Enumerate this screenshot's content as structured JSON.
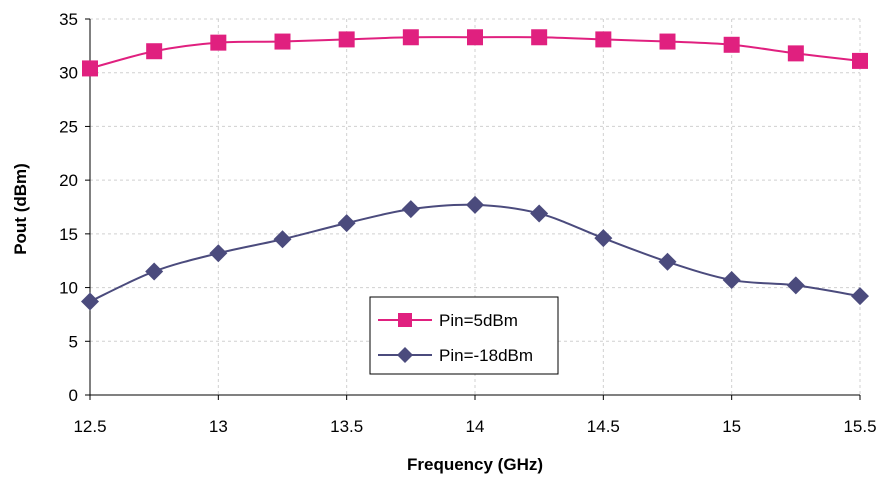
{
  "chart_data": {
    "type": "line",
    "xlabel": "Frequency (GHz)",
    "ylabel": "Pout (dBm)",
    "xlim": [
      12.5,
      15.5
    ],
    "ylim": [
      0,
      35
    ],
    "x_ticks": [
      "12.5",
      "13",
      "13.5",
      "14",
      "14.5",
      "15",
      "15.5"
    ],
    "y_ticks": [
      "0",
      "5",
      "10",
      "15",
      "20",
      "25",
      "30",
      "35"
    ],
    "grid": "dashed",
    "legend_position": "lower-center",
    "x": [
      12.5,
      12.75,
      13.0,
      13.25,
      13.5,
      13.75,
      14.0,
      14.25,
      14.5,
      14.75,
      15.0,
      15.25,
      15.5
    ],
    "series": [
      {
        "name": "Pin=5dBm",
        "color": "#e0207f",
        "marker": "square",
        "values": [
          30.4,
          32.0,
          32.8,
          32.9,
          33.1,
          33.3,
          33.3,
          33.3,
          33.1,
          32.9,
          32.6,
          31.8,
          31.1
        ]
      },
      {
        "name": "Pin=-18dBm",
        "color": "#4b4b7d",
        "marker": "diamond",
        "values": [
          8.7,
          11.5,
          13.2,
          14.5,
          16.0,
          17.3,
          17.7,
          16.9,
          14.6,
          12.4,
          10.7,
          10.2,
          9.2
        ]
      }
    ]
  }
}
